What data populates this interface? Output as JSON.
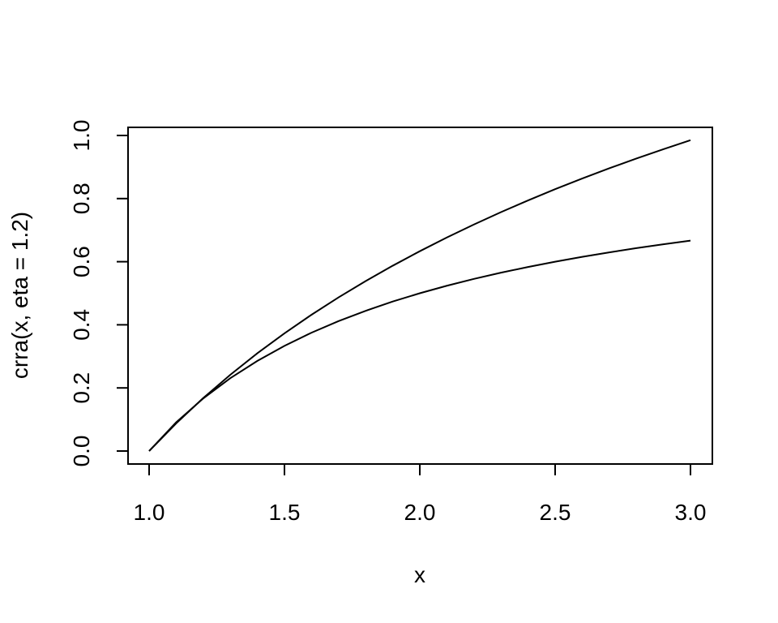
{
  "chart_data": {
    "type": "line",
    "xlabel": "x",
    "ylabel": "crra(x, eta = 1.2)",
    "xlim": [
      1.0,
      3.0
    ],
    "ylim": [
      0.0,
      1.0
    ],
    "x_ticks": [
      "1.0",
      "1.5",
      "2.0",
      "2.5",
      "3.0"
    ],
    "x_tick_values": [
      1.0,
      1.5,
      2.0,
      2.5,
      3.0
    ],
    "y_ticks": [
      "0.0",
      "0.2",
      "0.4",
      "0.6",
      "0.8",
      "1.0"
    ],
    "y_tick_values": [
      0.0,
      0.2,
      0.4,
      0.6,
      0.8,
      1.0
    ],
    "grid": false,
    "legend": "none",
    "color": "#000000",
    "series": [
      {
        "x": [
          1.0,
          1.1,
          1.2,
          1.3,
          1.4,
          1.5,
          1.6,
          1.7,
          1.8,
          1.9,
          2.0,
          2.1,
          2.2,
          2.3,
          2.4,
          2.5,
          2.6,
          2.7,
          2.8,
          2.9,
          3.0
        ],
        "y": [
          0.0,
          0.0936,
          0.1792,
          0.2578,
          0.3305,
          0.3979,
          0.4607,
          0.5194,
          0.5745,
          0.6264,
          0.6754,
          0.7218,
          0.7657,
          0.8075,
          0.8472,
          0.8851,
          0.9212,
          0.9557,
          0.9887,
          1.0203,
          1.0507
        ]
      },
      {
        "x": [
          1.0,
          1.1,
          1.2,
          1.3,
          1.4,
          1.5,
          1.6,
          1.7,
          1.8,
          1.9,
          2.0,
          2.1,
          2.2,
          2.3,
          2.4,
          2.5,
          2.6,
          2.7,
          2.8,
          2.9,
          3.0
        ],
        "y": [
          0.0,
          0.0909,
          0.1667,
          0.2308,
          0.2857,
          0.3333,
          0.375,
          0.4118,
          0.4444,
          0.4737,
          0.5,
          0.5238,
          0.5455,
          0.5652,
          0.5833,
          0.6,
          0.6154,
          0.6296,
          0.6429,
          0.6552,
          0.6667
        ]
      }
    ]
  }
}
